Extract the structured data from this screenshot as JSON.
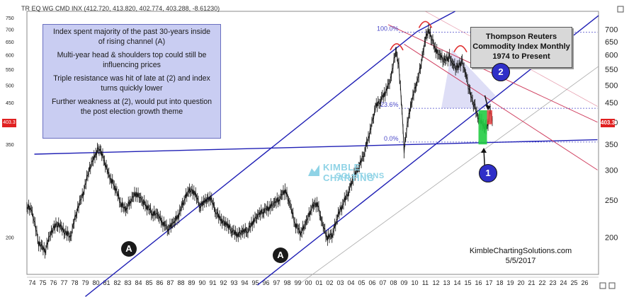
{
  "header": {
    "ohlc_text": "TR EQ WG CMD INX (412.720, 413.820, 402.774, 403.288, -8.61230)"
  },
  "notes": [
    "Index spent majority of the past 30-years inside of rising channel (A)",
    "Multi-year head & shoulders top could still be influencing prices",
    "Triple resistance was hit of late at (2) and index turns quickly lower",
    "Further weakness at (2), would put into question the post election growth theme"
  ],
  "title_box": {
    "line1": "Thompson Reuters",
    "line2": "Commodity Index Monthly",
    "line3": "1974 to Present"
  },
  "credit": {
    "site": "KimbleChartingSolutions.com",
    "date": "5/5/2017"
  },
  "logo": {
    "line1": "KIMBLE CHARTING",
    "line2": "SOLUTIONS"
  },
  "markers": {
    "a_label": "A",
    "one_label": "1",
    "two_label": "2"
  },
  "last_price_label": "403.3",
  "left_price_label": "403.3",
  "colors": {
    "price": "#111111",
    "channel": "#1f1fb5",
    "downtrend": "#d04060",
    "fib": "#4a48c8",
    "highlight_green": "#22cc44",
    "highlight_red": "#e04040",
    "notes_bg": "#c9cdf2"
  },
  "chart_data": {
    "type": "line",
    "title": "Thompson Reuters Commodity Index Monthly",
    "subtitle": "1974 to Present",
    "y_scale": "log",
    "xlabel": "",
    "ylabel": "",
    "ylim": [
      160,
      780
    ],
    "xlim": [
      1973.5,
      2027.3
    ],
    "grid": false,
    "x_tick_labels": [
      "74",
      "75",
      "76",
      "77",
      "78",
      "79",
      "80",
      "81",
      "82",
      "83",
      "84",
      "85",
      "86",
      "87",
      "88",
      "89",
      "90",
      "91",
      "92",
      "93",
      "94",
      "95",
      "96",
      "97",
      "98",
      "99",
      "00",
      "01",
      "02",
      "03",
      "04",
      "05",
      "06",
      "07",
      "08",
      "09",
      "10",
      "11",
      "12",
      "13",
      "14",
      "15",
      "16",
      "17",
      "18",
      "19",
      "20",
      "21",
      "22",
      "23",
      "24",
      "25",
      "26"
    ],
    "y_tick_values": [
      200,
      250,
      300,
      350,
      400,
      450,
      500,
      550,
      600,
      650,
      700,
      750
    ],
    "right_axis_ticks": [
      200,
      250,
      300,
      350,
      400,
      450,
      500,
      550,
      600,
      650,
      700
    ],
    "left_axis_ticks": [
      200,
      350,
      400,
      450,
      500,
      550,
      600,
      650,
      700,
      750
    ],
    "series": [
      {
        "x": [
          1973.5,
          1974.0,
          1974.6,
          1975.2,
          1975.8,
          1976.4,
          1977.0,
          1977.6,
          1978.2,
          1978.8,
          1979.4,
          1979.9,
          1980.3,
          1980.8,
          1981.3,
          1981.8,
          1982.3,
          1982.8,
          1983.3,
          1983.8,
          1984.3,
          1984.8,
          1985.3,
          1985.8,
          1986.3,
          1986.8,
          1987.3,
          1987.8,
          1988.3,
          1988.8,
          1989.3,
          1989.8,
          1990.3,
          1990.8,
          1991.3,
          1991.8,
          1992.3,
          1992.8,
          1993.3,
          1993.8,
          1994.3,
          1994.8,
          1995.3,
          1995.8,
          1996.3,
          1996.8,
          1997.3,
          1997.8,
          1998.3,
          1998.8,
          1999.3,
          1999.8,
          2000.3,
          2000.8,
          2001.3,
          2001.8,
          2002.3,
          2002.8,
          2003.3,
          2003.8,
          2004.3,
          2004.8,
          2005.3,
          2005.8,
          2006.3,
          2006.8,
          2007.3,
          2007.8,
          2008.2,
          2008.5,
          2008.8,
          2009.0,
          2009.3,
          2009.6,
          2009.9,
          2010.3,
          2010.7,
          2011.0,
          2011.3,
          2011.7,
          2012.0,
          2012.4,
          2012.8,
          2013.2,
          2013.6,
          2014.0,
          2014.4,
          2014.8,
          2015.2,
          2015.6,
          2016.0,
          2016.3,
          2016.6,
          2016.9,
          2017.1,
          2017.3
        ],
        "y": [
          240,
          230,
          192,
          182,
          205,
          215,
          205,
          198,
          232,
          258,
          300,
          322,
          340,
          312,
          282,
          268,
          243,
          232,
          248,
          258,
          246,
          238,
          228,
          226,
          215,
          208,
          215,
          226,
          248,
          262,
          258,
          238,
          246,
          250,
          230,
          218,
          213,
          206,
          200,
          204,
          206,
          217,
          226,
          232,
          236,
          242,
          250,
          263,
          238,
          212,
          203,
          216,
          236,
          244,
          214,
          196,
          203,
          226,
          243,
          262,
          286,
          303,
          333,
          373,
          432,
          453,
          476,
          520,
          610,
          556,
          423,
          332,
          390,
          430,
          470,
          510,
          580,
          650,
          688,
          640,
          605,
          590,
          570,
          590,
          560,
          545,
          575,
          530,
          470,
          440,
          405,
          395,
          380,
          390,
          420,
          403
        ]
      }
    ],
    "annotations": {
      "fib_levels": [
        {
          "label": "100.0%",
          "value": 688
        },
        {
          "label": "23.6%",
          "value": 435
        },
        {
          "label": "0.0%",
          "value": 355
        }
      ]
    }
  }
}
